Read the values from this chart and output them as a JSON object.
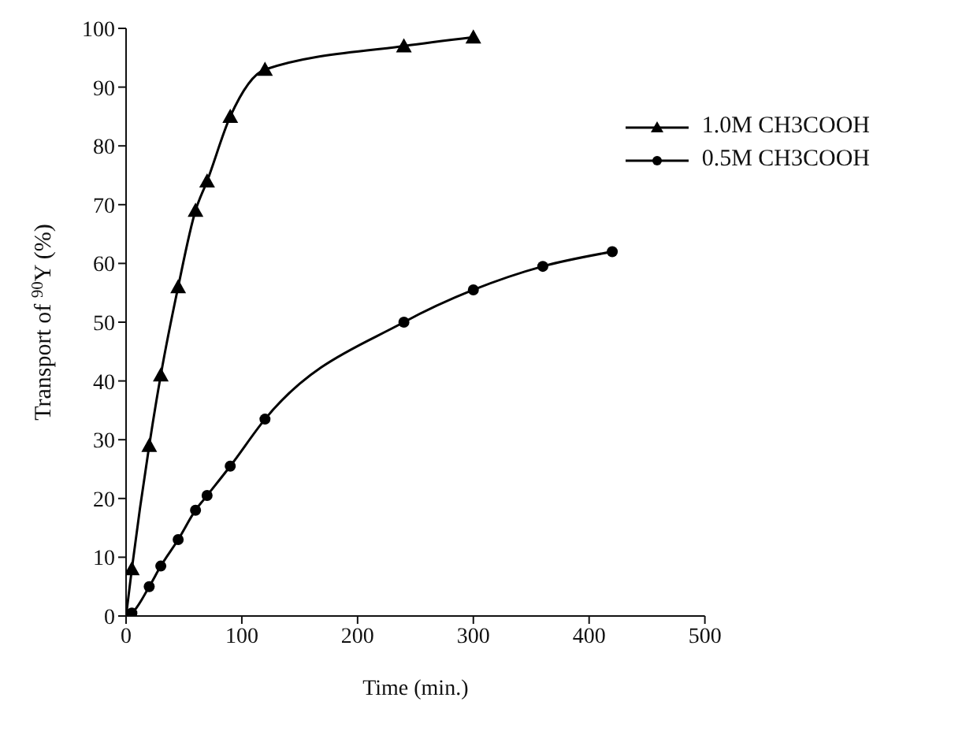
{
  "chart_data": {
    "type": "line",
    "xlabel": "Time (min.)",
    "ylabel": "Transport of $^{90}$Y (%)",
    "xlim": [
      0,
      500
    ],
    "xticks": [
      0,
      100,
      200,
      300,
      400,
      500
    ],
    "ylim": [
      0,
      100
    ],
    "yticks": [
      0,
      10,
      20,
      30,
      40,
      50,
      60,
      70,
      80,
      90,
      100
    ],
    "grid": false,
    "legend": "top right",
    "line_style": "solid",
    "series": [
      {
        "name": "1.0M CH3COOH",
        "color": "#000000",
        "marker": "triangle",
        "x": [
          0,
          5,
          20,
          30,
          45,
          60,
          70,
          90,
          120,
          240,
          300
        ],
        "values": [
          0,
          8,
          29,
          41,
          56,
          69,
          74,
          85,
          93,
          97,
          98.5
        ]
      },
      {
        "name": "0.5M CH3COOH",
        "color": "#000000",
        "marker": "circle",
        "x": [
          0,
          5,
          20,
          30,
          45,
          60,
          70,
          90,
          120,
          240,
          300,
          360,
          420
        ],
        "values": [
          0,
          0.5,
          5,
          8.5,
          13,
          18,
          20.5,
          25.5,
          33.5,
          50,
          55.5,
          59.5,
          62
        ]
      }
    ]
  }
}
